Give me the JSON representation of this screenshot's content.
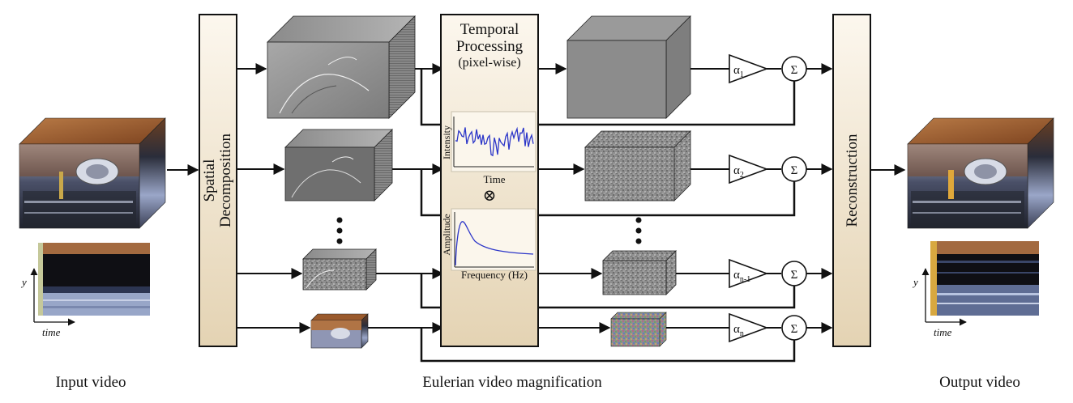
{
  "captions": {
    "input": "Input video",
    "middle": "Eulerian video magnification",
    "output": "Output video"
  },
  "blocks": {
    "spatial_line1": "Spatial",
    "spatial_line2": "Decomposition",
    "temporal_line1": "Temporal",
    "temporal_line2": "Processing",
    "temporal_line3": "(pixel-wise)",
    "reconstruction": "Reconstruction"
  },
  "plots": {
    "intensity_ylabel": "Intensity",
    "intensity_xlabel": "Time",
    "convolve_symbol": "⊗",
    "amplitude_ylabel": "Amplitude",
    "amplitude_xlabel": "Frequency (Hz)"
  },
  "amplifiers": {
    "alpha_symbol": "α",
    "subscripts": [
      "1",
      "2",
      "n-1",
      "n"
    ]
  },
  "sum_symbol": "Σ",
  "slices": {
    "y_label": "y",
    "time_label": "time"
  },
  "colors": {
    "block_fill_top": "#fbf5ea",
    "block_fill_bottom": "#e6d6b8",
    "signal_blue": "#2b35c8",
    "wood": "#9a5a2c"
  },
  "icons": [
    "vdots-icon",
    "triangle-amplifier-icon",
    "sum-circle-icon"
  ]
}
